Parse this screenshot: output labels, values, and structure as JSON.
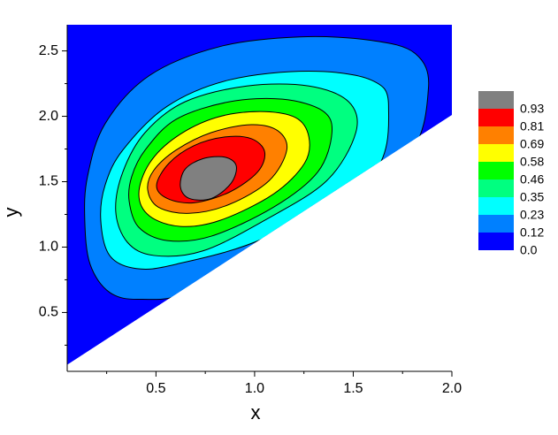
{
  "chart_data": {
    "type": "contour",
    "xlabel": "x",
    "ylabel": "y",
    "xlim": [
      0.05,
      2.0
    ],
    "ylim": [
      0.05,
      2.7
    ],
    "xticks": [
      0.5,
      {
        "value": 1,
        "label": "1.0"
      },
      1.5,
      {
        "value": 2,
        "label": "2.0"
      }
    ],
    "yticks": [
      0.5,
      {
        "value": 1,
        "label": "1.0"
      },
      1.5,
      {
        "value": 2,
        "label": "2.0"
      },
      2.5
    ],
    "xminorticks": [
      0.25,
      0.75,
      1.25,
      1.75
    ],
    "yminorticks": [
      0.25,
      0.75,
      1.25,
      1.75,
      2.25
    ],
    "series": [
      {
        "level": {
          "value": 0,
          "label": "0.0"
        },
        "color": "#0000ff",
        "x": [
          0.05,
          0.05,
          2.0,
          2.0
        ],
        "y": [
          0.1,
          2.7,
          2.7,
          2.01
        ]
      },
      {
        "level": 0.12,
        "color": "#0080ff",
        "x": [
          0.139,
          0.166,
          0.265,
          0.422,
          0.692,
          1.275,
          1.769,
          1.881,
          1.814,
          1.59,
          1.23,
          0.826,
          0.467,
          0.242,
          0.153
        ],
        "y": [
          1.205,
          0.869,
          0.654,
          0.601,
          0.668,
          1.138,
          1.674,
          2.211,
          2.48,
          2.581,
          2.607,
          2.534,
          2.312,
          1.943,
          1.54
        ]
      },
      {
        "level": 0.23,
        "color": "#00ffff",
        "x": [
          0.22,
          0.265,
          0.4,
          0.602,
          1.051,
          1.59,
          1.679,
          1.59,
          1.275,
          0.871,
          0.557,
          0.332,
          0.242
        ],
        "y": [
          1.205,
          0.936,
          0.836,
          0.869,
          1.07,
          1.54,
          2.077,
          2.278,
          2.345,
          2.278,
          2.077,
          1.742,
          1.473
        ]
      },
      {
        "level": 0.35,
        "color": "#00ff80",
        "x": [
          0.296,
          0.355,
          0.489,
          0.736,
          1.051,
          1.365,
          1.513,
          1.477,
          1.275,
          0.961,
          0.647,
          0.445,
          0.332
        ],
        "y": [
          1.272,
          1.037,
          0.936,
          0.97,
          1.205,
          1.507,
          1.876,
          2.111,
          2.232,
          2.232,
          2.111,
          1.876,
          1.574
        ]
      },
      {
        "level": 0.46,
        "color": "#00ff00",
        "x": [
          0.364,
          0.413,
          0.557,
          0.781,
          1.096,
          1.32,
          1.392,
          1.343,
          1.141,
          0.871,
          0.602,
          0.445,
          0.377
        ],
        "y": [
          1.352,
          1.151,
          1.05,
          1.084,
          1.305,
          1.574,
          1.876,
          2.044,
          2.131,
          2.111,
          1.977,
          1.742,
          1.54
        ]
      },
      {
        "level": 0.58,
        "color": "#ffff00",
        "x": [
          0.413,
          0.467,
          0.624,
          0.826,
          1.096,
          1.253,
          1.275,
          1.208,
          1.028,
          0.804,
          0.602,
          0.467
        ],
        "y": [
          1.406,
          1.238,
          1.158,
          1.205,
          1.406,
          1.641,
          1.842,
          1.99,
          2.037,
          1.99,
          1.842,
          1.641
        ]
      },
      {
        "level": 0.69,
        "color": "#ff8000",
        "x": [
          0.458,
          0.512,
          0.669,
          0.871,
          1.073,
          1.163,
          1.118,
          0.983,
          0.781,
          0.602,
          0.489
        ],
        "y": [
          1.44,
          1.305,
          1.258,
          1.326,
          1.507,
          1.742,
          1.889,
          1.936,
          1.876,
          1.742,
          1.587
        ]
      },
      {
        "level": 0.81,
        "color": "#ff0000",
        "x": [
          0.503,
          0.557,
          0.692,
          0.871,
          1.015,
          1.051,
          0.983,
          0.849,
          0.692,
          0.566
        ],
        "y": [
          1.473,
          1.372,
          1.339,
          1.419,
          1.574,
          1.728,
          1.829,
          1.842,
          1.775,
          1.641
        ]
      },
      {
        "level": 0.93,
        "color": "#808080",
        "x": [
          0.624,
          0.669,
          0.781,
          0.88,
          0.907,
          0.849,
          0.736,
          0.647
        ],
        "y": [
          1.46,
          1.372,
          1.372,
          1.487,
          1.621,
          1.688,
          1.675,
          1.594
        ]
      }
    ]
  }
}
